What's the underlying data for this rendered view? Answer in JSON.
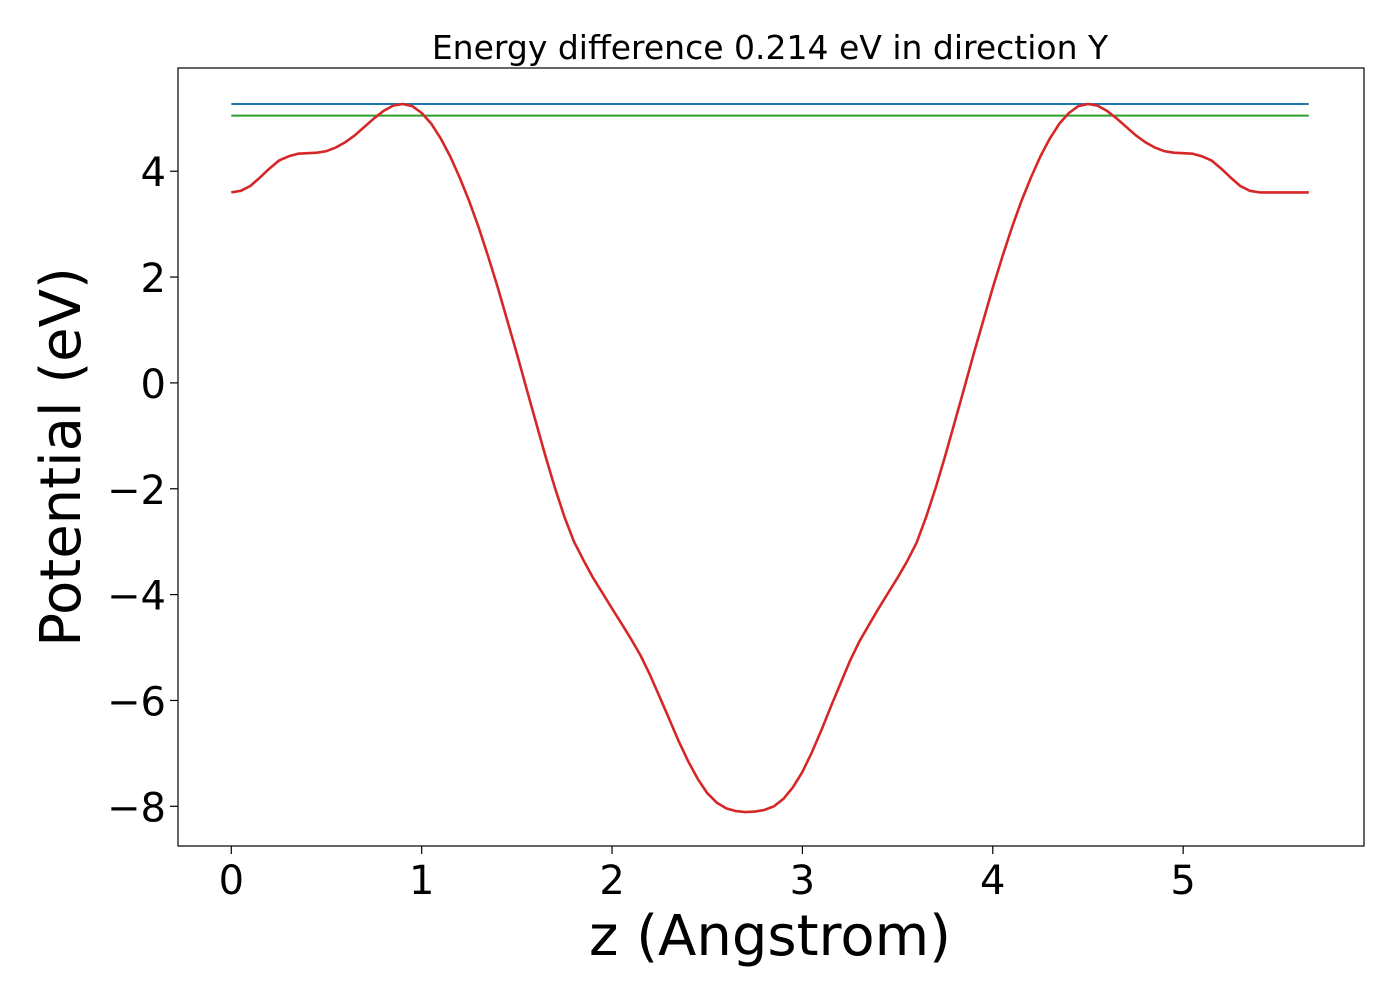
{
  "chart_data": {
    "type": "line",
    "title": "Energy difference 0.214 eV in direction Y",
    "xlabel": "z (Angstrom)",
    "ylabel": "Potential (eV)",
    "xlim": [
      -0.28,
      5.95
    ],
    "ylim": [
      -8.75,
      5.95
    ],
    "xticks": [
      0,
      1,
      2,
      3,
      4,
      5
    ],
    "xtick_labels": [
      "0",
      "1",
      "2",
      "3",
      "4",
      "5"
    ],
    "yticks": [
      4,
      2,
      0,
      -2,
      -4,
      -6,
      -8
    ],
    "ytick_labels": [
      "4",
      "2",
      "0",
      "−2",
      "−4",
      "−6",
      "−8"
    ],
    "grid": false,
    "legend": "none",
    "series": [
      {
        "color": "#d62728",
        "x": [
          0.0,
          0.05,
          0.1,
          0.15,
          0.2,
          0.25,
          0.3,
          0.35,
          0.4,
          0.45,
          0.5,
          0.55,
          0.6,
          0.65,
          0.7,
          0.75,
          0.8,
          0.85,
          0.9,
          0.95,
          1.0,
          1.05,
          1.1,
          1.15,
          1.2,
          1.25,
          1.3,
          1.35,
          1.4,
          1.45,
          1.5,
          1.55,
          1.6,
          1.65,
          1.7,
          1.75,
          1.8,
          1.85,
          1.9,
          1.95,
          2.0,
          2.05,
          2.1,
          2.15,
          2.2,
          2.25,
          2.3,
          2.35,
          2.4,
          2.45,
          2.5,
          2.55,
          2.6,
          2.65,
          2.7,
          2.75,
          2.8,
          2.85,
          2.9,
          2.95,
          3.0,
          3.05,
          3.1,
          3.15,
          3.2,
          3.25,
          3.3,
          3.35,
          3.4,
          3.45,
          3.5,
          3.55,
          3.6,
          3.65,
          3.7,
          3.75,
          3.8,
          3.85,
          3.9,
          3.95,
          4.0,
          4.05,
          4.1,
          4.15,
          4.2,
          4.25,
          4.3,
          4.35,
          4.4,
          4.45,
          4.5,
          4.55,
          4.6,
          4.65,
          4.7,
          4.75,
          4.8,
          4.85,
          4.9,
          4.95,
          5.0,
          5.05,
          5.1,
          5.15,
          5.2,
          5.25,
          5.3,
          5.35,
          5.4,
          5.45,
          5.5,
          5.55,
          5.6,
          5.66
        ],
        "values": [
          3.6,
          3.63,
          3.72,
          3.88,
          4.05,
          4.2,
          4.28,
          4.33,
          4.34,
          4.35,
          4.38,
          4.45,
          4.55,
          4.68,
          4.84,
          5.0,
          5.14,
          5.24,
          5.27,
          5.23,
          5.1,
          4.9,
          4.62,
          4.28,
          3.88,
          3.43,
          2.93,
          2.38,
          1.8,
          1.18,
          0.55,
          -0.1,
          -0.74,
          -1.38,
          -1.98,
          -2.53,
          -3.0,
          -3.35,
          -3.68,
          -3.97,
          -4.26,
          -4.55,
          -4.84,
          -5.15,
          -5.52,
          -5.93,
          -6.35,
          -6.77,
          -7.15,
          -7.48,
          -7.75,
          -7.93,
          -8.04,
          -8.09,
          -8.11,
          -8.1,
          -8.07,
          -8.0,
          -7.86,
          -7.64,
          -7.35,
          -6.98,
          -6.56,
          -6.11,
          -5.68,
          -5.25,
          -4.88,
          -4.57,
          -4.26,
          -3.97,
          -3.68,
          -3.37,
          -3.02,
          -2.53,
          -1.98,
          -1.38,
          -0.74,
          -0.1,
          0.55,
          1.18,
          1.8,
          2.38,
          2.93,
          3.43,
          3.88,
          4.28,
          4.62,
          4.9,
          5.1,
          5.23,
          5.27,
          5.24,
          5.14,
          5.0,
          4.84,
          4.68,
          4.55,
          4.45,
          4.38,
          4.35,
          4.34,
          4.33,
          4.28,
          4.2,
          4.05,
          3.88,
          3.72,
          3.63,
          3.6,
          3.6,
          3.6,
          3.6,
          3.6,
          3.6
        ]
      },
      {
        "color": "#1f77b4",
        "x": [
          0.0,
          5.66
        ],
        "values": [
          5.27,
          5.27
        ]
      },
      {
        "color": "#2ca02c",
        "x": [
          0.0,
          5.66
        ],
        "values": [
          5.05,
          5.05
        ]
      }
    ]
  }
}
